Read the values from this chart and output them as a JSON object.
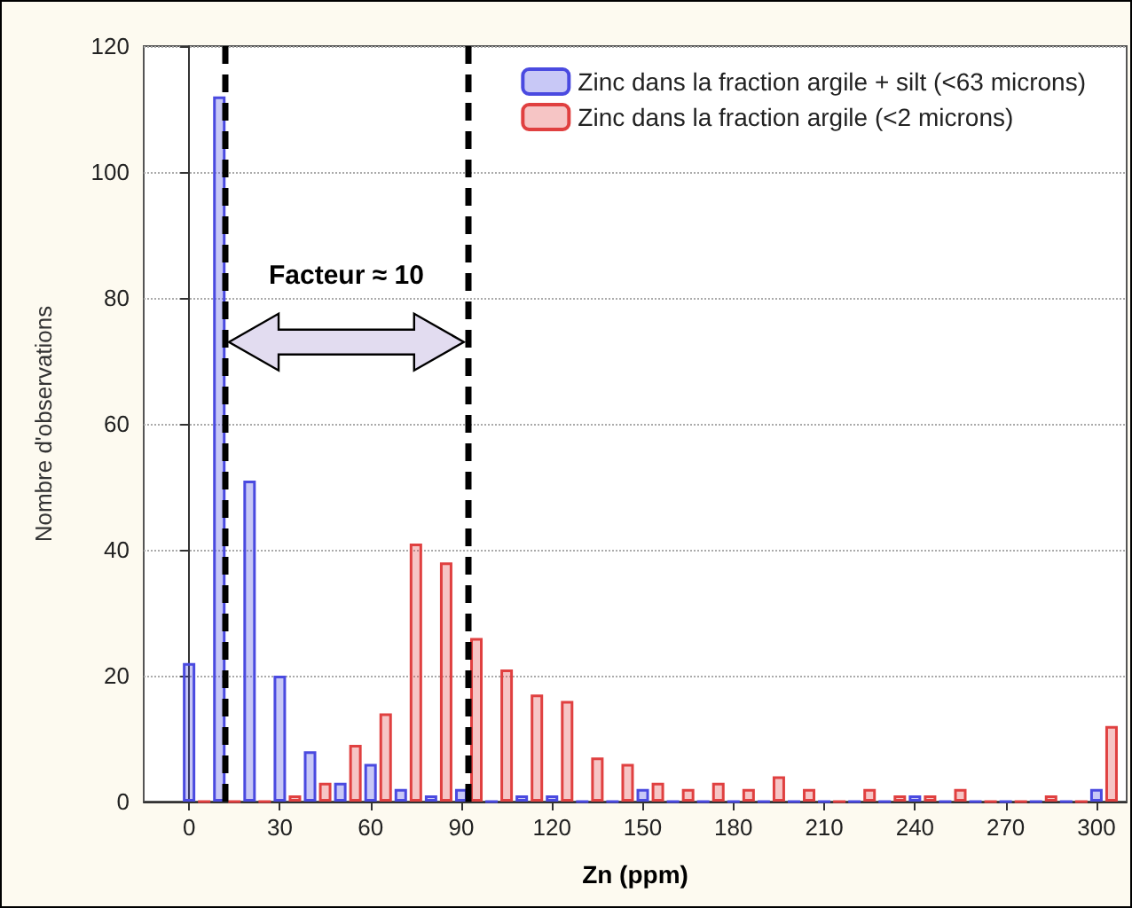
{
  "chart_data": {
    "type": "bar",
    "xlabel": "Zn (ppm)",
    "ylabel": "Nombre d'observations",
    "annotations": [
      "Facteur ≈ 10"
    ],
    "series": [
      {
        "name": "Zinc dans la fraction argile + silt (<63 microns)",
        "color": "#4a4ae0",
        "x": [
          0,
          10,
          20,
          30,
          40,
          50,
          60,
          70,
          80,
          90,
          100,
          110,
          120,
          130,
          140,
          150,
          160,
          170,
          180,
          190,
          200,
          210,
          220,
          230,
          240,
          250,
          260,
          270,
          280,
          290,
          300
        ],
        "values": [
          22,
          112,
          51,
          20,
          8,
          3,
          6,
          2,
          1,
          2,
          0,
          1,
          1,
          0,
          0,
          2,
          0,
          0,
          0,
          0,
          0,
          0,
          0,
          0,
          1,
          0,
          0,
          0,
          0,
          0,
          2
        ]
      },
      {
        "name": "Zinc dans la fraction argile (<2 microns)",
        "color": "#e04040",
        "x": [
          5,
          15,
          25,
          35,
          45,
          55,
          65,
          75,
          85,
          95,
          105,
          115,
          125,
          135,
          145,
          155,
          165,
          175,
          185,
          195,
          205,
          215,
          225,
          235,
          245,
          255,
          265,
          275,
          285,
          295,
          305
        ],
        "values": [
          0,
          0,
          0,
          1,
          3,
          9,
          14,
          41,
          38,
          26,
          21,
          17,
          16,
          7,
          6,
          3,
          2,
          3,
          2,
          4,
          2,
          0,
          2,
          1,
          1,
          2,
          0,
          0,
          1,
          0,
          12
        ]
      }
    ],
    "xlim": [
      -15,
      310
    ],
    "xticks": [
      0,
      30,
      60,
      90,
      120,
      150,
      180,
      210,
      240,
      270,
      300
    ],
    "ylim": [
      0,
      120
    ],
    "yticks": [
      0,
      20,
      40,
      60,
      80,
      100,
      120
    ],
    "grid": "y",
    "legend": "top right",
    "ref_lines": [
      {
        "axis": "x",
        "value": 12,
        "color": "#000000",
        "line_style": "dashed"
      },
      {
        "axis": "x",
        "value": 92,
        "color": "#000000",
        "line_style": "dashed"
      }
    ]
  }
}
